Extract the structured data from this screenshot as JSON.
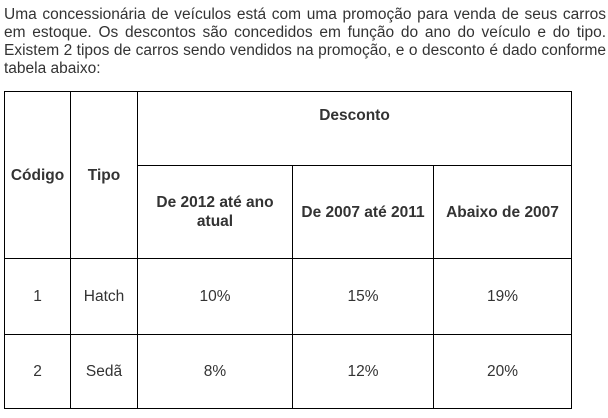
{
  "intro_text": "Uma concessionária de veículos está com uma promoção para venda de seus carros em estoque. Os descontos são concedidos em função do ano do veículo e do tipo. Existem 2 tipos de carros sendo vendidos na promoção, e o desconto é dado conforme tabela abaixo:",
  "table": {
    "headers": {
      "code": "Código",
      "type": "Tipo",
      "discount": "Desconto",
      "ranges": [
        "De 2012 até ano atual",
        "De 2007 até 2011",
        "Abaixo de 2007"
      ]
    },
    "rows": [
      {
        "code": "1",
        "type": "Hatch",
        "discounts": [
          "10%",
          "15%",
          "19%"
        ]
      },
      {
        "code": "2",
        "type": "Sedã",
        "discounts": [
          "8%",
          "12%",
          "20%"
        ]
      }
    ]
  }
}
